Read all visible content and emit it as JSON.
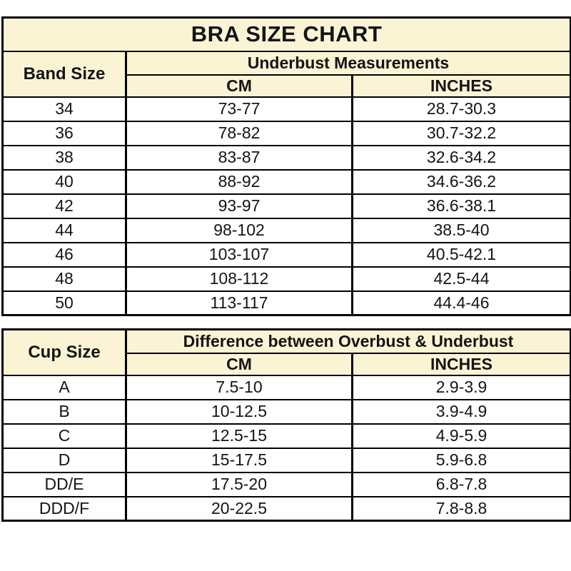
{
  "title": "BRA SIZE CHART",
  "colors": {
    "header_bg": "#FAF4D5",
    "border": "#000000",
    "text": "#141414",
    "page_bg": "#FFFFFF"
  },
  "chart_data": [
    {
      "type": "table",
      "title": "BRA SIZE CHART",
      "corner_header": "Band Size",
      "group_header": "Underbust Measurements",
      "col_headers": [
        "CM",
        "INCHES"
      ],
      "rows": [
        [
          "34",
          "73-77",
          "28.7-30.3"
        ],
        [
          "36",
          "78-82",
          "30.7-32.2"
        ],
        [
          "38",
          "83-87",
          "32.6-34.2"
        ],
        [
          "40",
          "88-92",
          "34.6-36.2"
        ],
        [
          "42",
          "93-97",
          "36.6-38.1"
        ],
        [
          "44",
          "98-102",
          "38.5-40"
        ],
        [
          "46",
          "103-107",
          "40.5-42.1"
        ],
        [
          "48",
          "108-112",
          "42.5-44"
        ],
        [
          "50",
          "113-117",
          "44.4-46"
        ]
      ]
    },
    {
      "type": "table",
      "corner_header": "Cup Size",
      "group_header": "Difference between Overbust & Underbust",
      "col_headers": [
        "CM",
        "INCHES"
      ],
      "rows": [
        [
          "A",
          "7.5-10",
          "2.9-3.9"
        ],
        [
          "B",
          "10-12.5",
          "3.9-4.9"
        ],
        [
          "C",
          "12.5-15",
          "4.9-5.9"
        ],
        [
          "D",
          "15-17.5",
          "5.9-6.8"
        ],
        [
          "DD/E",
          "17.5-20",
          "6.8-7.8"
        ],
        [
          "DDD/F",
          "20-22.5",
          "7.8-8.8"
        ]
      ]
    }
  ]
}
